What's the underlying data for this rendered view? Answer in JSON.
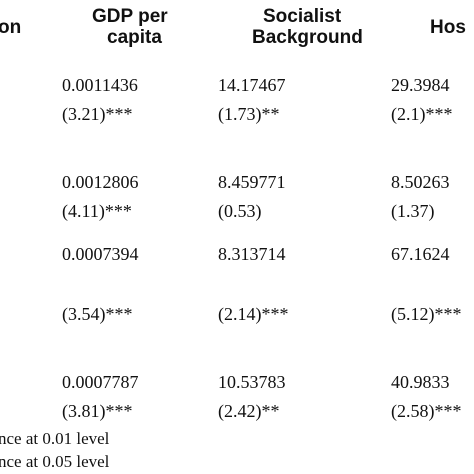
{
  "table": {
    "headers": {
      "col0": "on",
      "col1_line1": "GDP per",
      "col1_line2": "capita",
      "col2_line1": "Socialist",
      "col2_line2": "Background",
      "col3": "Hos"
    },
    "rows": [
      {
        "gdp": "0.0011436",
        "gdp_t": "(3.21)***",
        "soc": "14.17467",
        "soc_t": "(1.73)**",
        "hos": "29.3984",
        "hos_t": "(2.1)***"
      },
      {
        "gdp": "0.0012806",
        "gdp_t": "(4.11)***",
        "soc": "8.459771",
        "soc_t": "(0.53)",
        "hos": "8.50263",
        "hos_t": "(1.37)"
      },
      {
        "gdp": "0.0007394",
        "gdp_t": "(3.54)***",
        "soc": "8.313714",
        "soc_t": "(2.14)***",
        "hos": "67.1624",
        "hos_t": "(5.12)***"
      },
      {
        "gdp": "0.0007787",
        "gdp_t": "(3.81)***",
        "soc": "10.53783",
        "soc_t": "(2.42)**",
        "hos": "40.9833",
        "hos_t": "(2.58)***"
      }
    ],
    "notes": [
      "nce at 0.01 level",
      "nce at 0.05 level"
    ]
  }
}
